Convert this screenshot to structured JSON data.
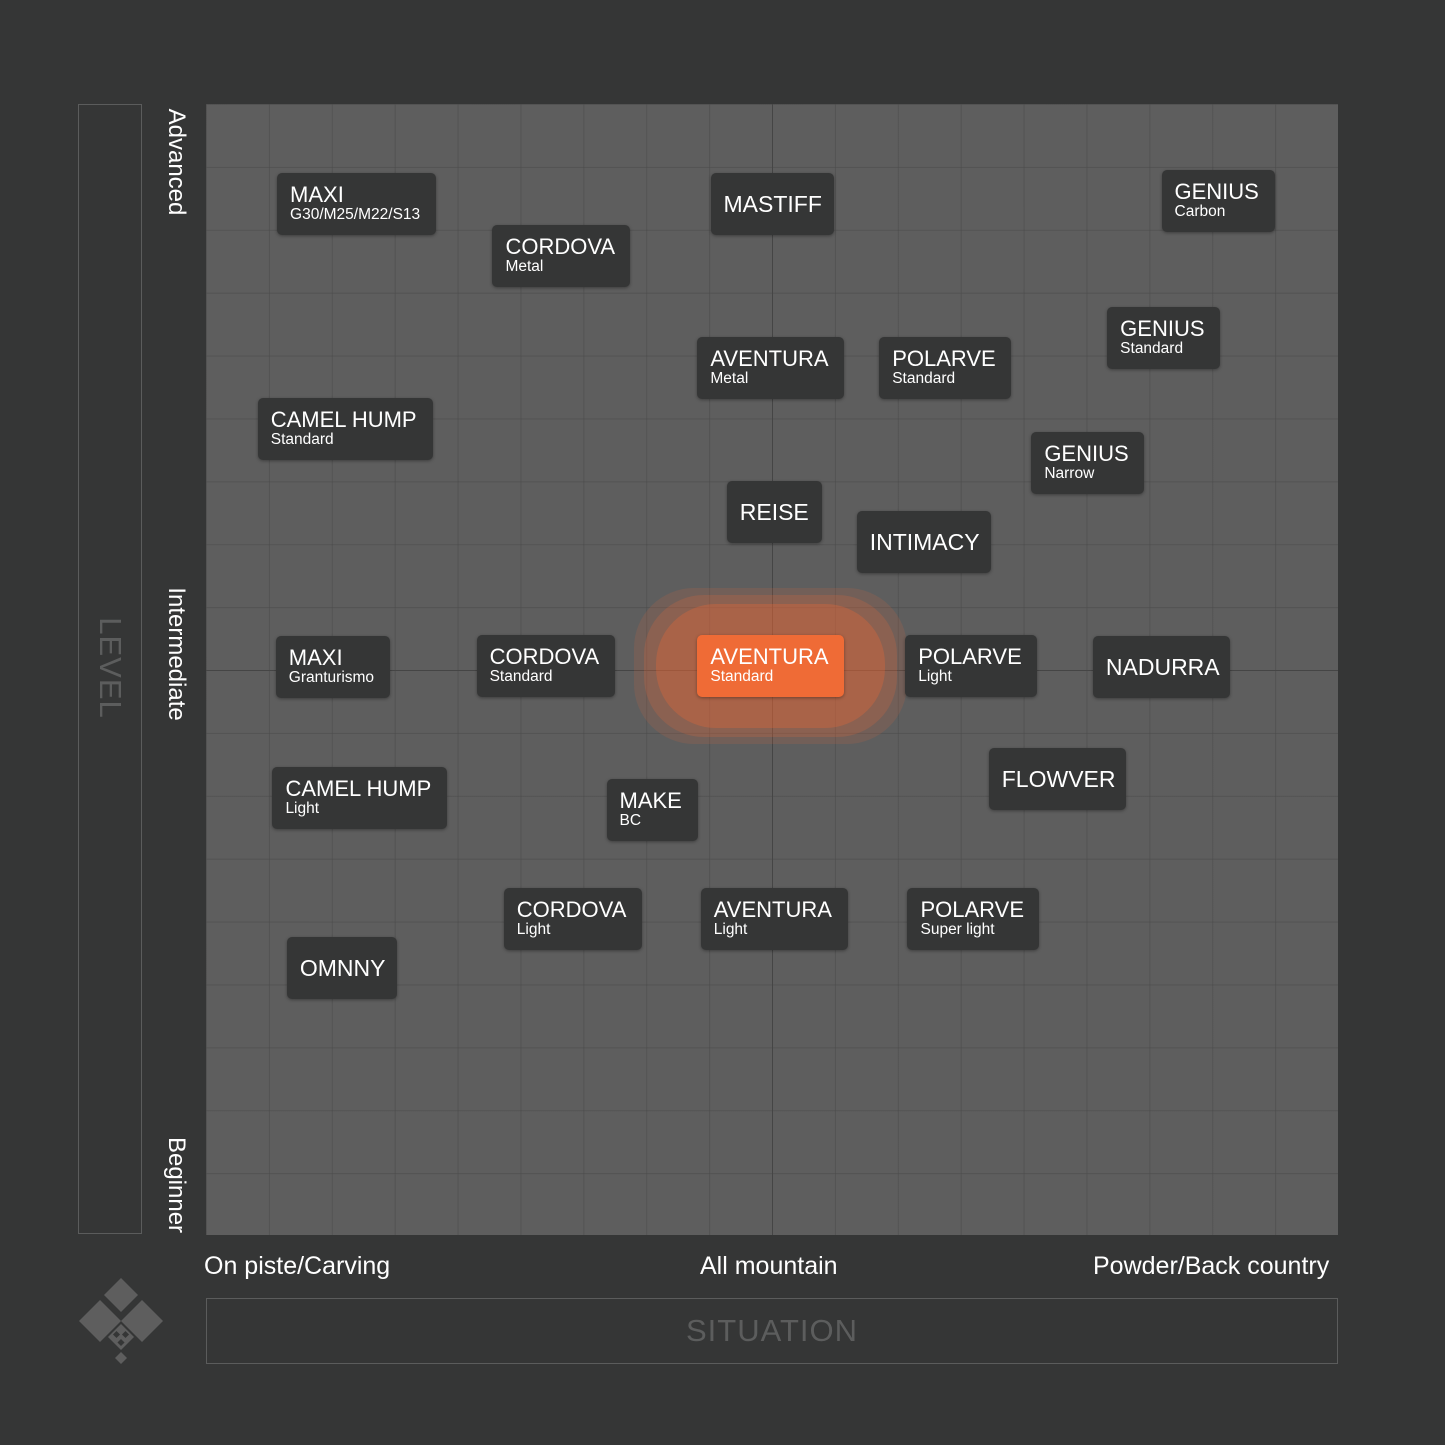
{
  "chart_data": {
    "type": "scatter",
    "title": "",
    "xlabel": "SITUATION",
    "ylabel": "LEVEL",
    "xlim": [
      0,
      100
    ],
    "ylim": [
      0,
      100
    ],
    "x_ticks": [
      "On piste/Carving",
      "All mountain",
      "Powder/Back country"
    ],
    "y_ticks": [
      "Beginner",
      "Intermediate",
      "Advanced"
    ],
    "highlight_color": "#ef6b36",
    "label_color": "#353636",
    "points": [
      {
        "name": "MAXI",
        "sub": "G30/M25/M22/S13",
        "x": 13.3,
        "y": 91.2
      },
      {
        "name": "CORDOVA",
        "sub": "Metal",
        "x": 31.4,
        "y": 86.6
      },
      {
        "name": "MASTIFF",
        "sub": "",
        "x": 50.0,
        "y": 91.2
      },
      {
        "name": "GENIUS",
        "sub": "Carbon",
        "x": 89.4,
        "y": 91.4
      },
      {
        "name": "GENIUS",
        "sub": "Standard",
        "x": 84.6,
        "y": 79.3
      },
      {
        "name": "AVENTURA",
        "sub": "Metal",
        "x": 49.9,
        "y": 76.7
      },
      {
        "name": "POLARVE",
        "sub": "Standard",
        "x": 65.3,
        "y": 76.7
      },
      {
        "name": "CAMEL HUMP",
        "sub": "Standard",
        "x": 12.3,
        "y": 71.3
      },
      {
        "name": "GENIUS",
        "sub": "Narrow",
        "x": 77.9,
        "y": 68.3
      },
      {
        "name": "REISE",
        "sub": "",
        "x": 50.2,
        "y": 63.9
      },
      {
        "name": "INTIMACY",
        "sub": "",
        "x": 63.4,
        "y": 61.3
      },
      {
        "name": "MAXI",
        "sub": "Granturismo",
        "x": 11.2,
        "y": 50.2
      },
      {
        "name": "CORDOVA",
        "sub": "Standard",
        "x": 30.0,
        "y": 50.3
      },
      {
        "name": "AVENTURA",
        "sub": "Standard",
        "x": 49.9,
        "y": 50.3,
        "highlight": true
      },
      {
        "name": "POLARVE",
        "sub": "Light",
        "x": 67.6,
        "y": 50.3
      },
      {
        "name": "NADURRA",
        "sub": "",
        "x": 84.4,
        "y": 50.2
      },
      {
        "name": "FLOWVER",
        "sub": "",
        "x": 75.2,
        "y": 40.3
      },
      {
        "name": "CAMEL HUMP",
        "sub": "Light",
        "x": 13.6,
        "y": 38.6
      },
      {
        "name": "MAKE",
        "sub": "BC",
        "x": 39.4,
        "y": 37.6
      },
      {
        "name": "CORDOVA",
        "sub": "Standard",
        "x": 0,
        "y": 0,
        "omit": true
      },
      {
        "name": "CORDOVA",
        "sub": "Light",
        "x": 32.4,
        "y": 27.9
      },
      {
        "name": "AVENTURA",
        "sub": "Light",
        "x": 50.2,
        "y": 27.9
      },
      {
        "name": "POLARVE",
        "sub": "Super light",
        "x": 67.8,
        "y": 27.9
      },
      {
        "name": "OMNNY",
        "sub": "",
        "x": 12.0,
        "y": 23.6
      }
    ]
  }
}
